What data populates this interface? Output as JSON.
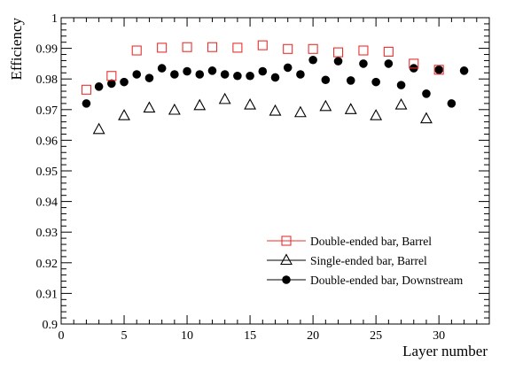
{
  "chart_data": {
    "type": "scatter",
    "title": "",
    "xlabel": "Layer number",
    "ylabel": "Efficiency",
    "xlim": [
      0,
      34
    ],
    "ylim": [
      0.9,
      1.0
    ],
    "grid": false,
    "legend_position": "bottom-right",
    "x_ticks": [
      "0",
      "5",
      "10",
      "15",
      "20",
      "25",
      "30"
    ],
    "y_ticks": [
      "0.9",
      "0.91",
      "0.92",
      "0.93",
      "0.94",
      "0.95",
      "0.96",
      "0.97",
      "0.98",
      "0.99",
      "1"
    ],
    "series": [
      {
        "name": "Double-ended bar, Barrel",
        "marker": "open-square",
        "color": "#e8312f",
        "x": [
          2,
          4,
          6,
          8,
          10,
          12,
          14,
          16,
          18,
          20,
          22,
          24,
          26,
          28,
          30
        ],
        "y": [
          0.9765,
          0.981,
          0.9893,
          0.9902,
          0.9904,
          0.9904,
          0.9902,
          0.991,
          0.9898,
          0.9898,
          0.9887,
          0.9893,
          0.9889,
          0.985,
          0.983
        ]
      },
      {
        "name": "Single-ended bar, Barrel",
        "marker": "open-triangle",
        "color": "#000000",
        "x": [
          3,
          5,
          7,
          9,
          11,
          13,
          15,
          17,
          19,
          21,
          23,
          25,
          27,
          29
        ],
        "y": [
          0.9635,
          0.968,
          0.9705,
          0.9698,
          0.9713,
          0.9733,
          0.9715,
          0.9695,
          0.969,
          0.971,
          0.97,
          0.968,
          0.9715,
          0.967
        ]
      },
      {
        "name": "Double-ended bar, Downstream",
        "marker": "filled-circle",
        "color": "#000000",
        "x": [
          2,
          3,
          4,
          5,
          6,
          7,
          8,
          9,
          10,
          11,
          12,
          13,
          14,
          15,
          16,
          17,
          18,
          19,
          20,
          21,
          22,
          23,
          24,
          25,
          26,
          27,
          28,
          29,
          30,
          31,
          32
        ],
        "y": [
          0.972,
          0.9775,
          0.9785,
          0.979,
          0.9815,
          0.9803,
          0.9835,
          0.9815,
          0.9825,
          0.9815,
          0.9827,
          0.9815,
          0.981,
          0.981,
          0.9825,
          0.9805,
          0.9837,
          0.9815,
          0.9862,
          0.9797,
          0.9858,
          0.9795,
          0.985,
          0.979,
          0.985,
          0.978,
          0.9835,
          0.9752,
          0.983,
          0.972,
          0.9827
        ]
      }
    ]
  }
}
